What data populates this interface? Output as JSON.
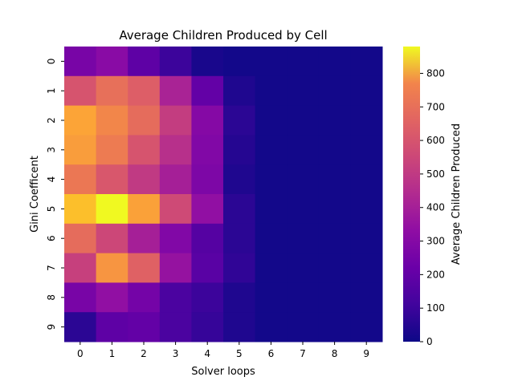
{
  "chart_data": {
    "type": "heatmap",
    "title": "Average Children Produced by Cell",
    "xlabel": "Solver loops",
    "ylabel": "Gini Coefficent",
    "x_categories": [
      "0",
      "1",
      "2",
      "3",
      "4",
      "5",
      "6",
      "7",
      "8",
      "9"
    ],
    "y_categories": [
      "0",
      "1",
      "2",
      "3",
      "4",
      "5",
      "6",
      "7",
      "8",
      "9"
    ],
    "values": [
      [
        210,
        250,
        150,
        80,
        20,
        10,
        10,
        10,
        10,
        10
      ],
      [
        480,
        560,
        510,
        330,
        160,
        30,
        10,
        10,
        10,
        10
      ],
      [
        700,
        620,
        550,
        410,
        240,
        50,
        10,
        10,
        10,
        10
      ],
      [
        680,
        590,
        480,
        370,
        230,
        40,
        10,
        10,
        10,
        10
      ],
      [
        580,
        490,
        400,
        320,
        220,
        30,
        10,
        10,
        10,
        10
      ],
      [
        760,
        880,
        690,
        450,
        270,
        50,
        10,
        10,
        10,
        10
      ],
      [
        550,
        440,
        320,
        230,
        130,
        50,
        10,
        10,
        10,
        10
      ],
      [
        420,
        660,
        520,
        280,
        140,
        60,
        10,
        10,
        10,
        10
      ],
      [
        210,
        270,
        200,
        110,
        80,
        30,
        10,
        10,
        10,
        10
      ],
      [
        50,
        150,
        160,
        110,
        70,
        30,
        10,
        10,
        10,
        10
      ]
    ],
    "colormap": "plasma",
    "vmin": 0,
    "vmax": 880,
    "colorbar": {
      "label": "Average Children Produced",
      "ticks": [
        0,
        100,
        200,
        300,
        400,
        500,
        600,
        700,
        800
      ],
      "tick_labels": [
        "0",
        "100",
        "200",
        "300",
        "400",
        "500",
        "600",
        "700",
        "800"
      ]
    }
  }
}
